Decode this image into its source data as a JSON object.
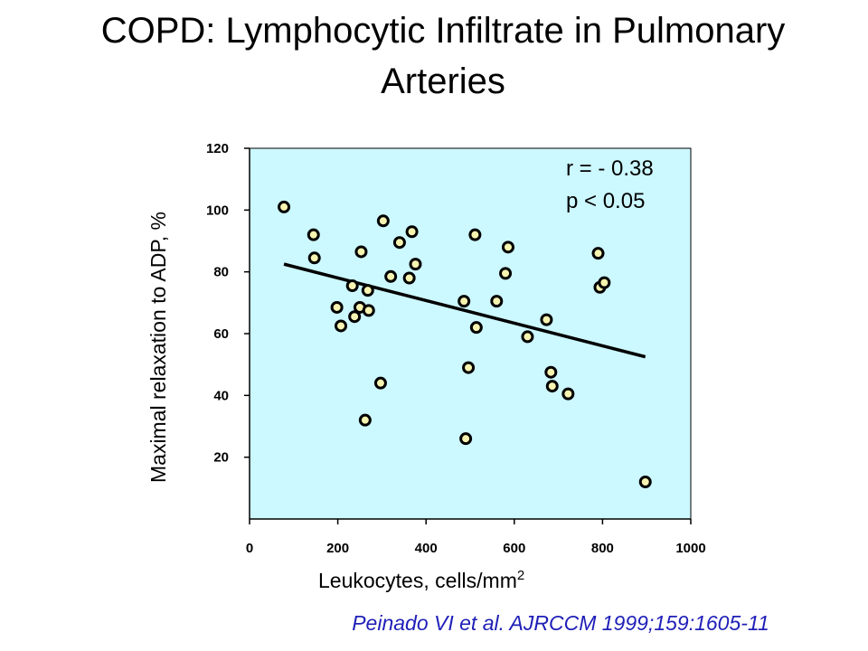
{
  "title_line1": "COPD: Lymphocytic Infiltrate in Pulmonary",
  "title_line2": "Arteries",
  "citation": "Peinado VI et al. AJRCCM 1999;159:1605-11",
  "chart_data": {
    "type": "scatter",
    "xlabel": "Leukocytes, cells/mm",
    "xlabel_superscript": "2",
    "ylabel": "Maximal relaxation to ADP, %",
    "xlim": [
      0,
      1000
    ],
    "ylim": [
      0,
      120
    ],
    "x_ticks": [
      "0",
      "200",
      "400",
      "600",
      "800",
      "1000"
    ],
    "y_ticks": [
      "20",
      "40",
      "60",
      "80",
      "100",
      "120"
    ],
    "y_tick_values": [
      20,
      40,
      60,
      80,
      100,
      120
    ],
    "annotations": [
      "r = - 0.38",
      "p < 0.05"
    ],
    "grid": false,
    "colors": {
      "plot_background": "#ccf8ff",
      "point_fill": "#f7f4b0",
      "line": "#000000",
      "citation": "#1f1fb8"
    },
    "points": [
      {
        "x": 78,
        "y": 101
      },
      {
        "x": 145,
        "y": 92
      },
      {
        "x": 147,
        "y": 84.5
      },
      {
        "x": 198,
        "y": 68.5
      },
      {
        "x": 207,
        "y": 62.5
      },
      {
        "x": 233,
        "y": 75.5
      },
      {
        "x": 238,
        "y": 65.5
      },
      {
        "x": 250,
        "y": 68.5
      },
      {
        "x": 253,
        "y": 86.5
      },
      {
        "x": 262,
        "y": 32
      },
      {
        "x": 268,
        "y": 74
      },
      {
        "x": 270,
        "y": 67.5
      },
      {
        "x": 297,
        "y": 44
      },
      {
        "x": 303,
        "y": 96.5
      },
      {
        "x": 320,
        "y": 78.5
      },
      {
        "x": 340,
        "y": 89.5
      },
      {
        "x": 362,
        "y": 78
      },
      {
        "x": 368,
        "y": 93
      },
      {
        "x": 376,
        "y": 82.5
      },
      {
        "x": 486,
        "y": 70.5
      },
      {
        "x": 490,
        "y": 26
      },
      {
        "x": 496,
        "y": 49
      },
      {
        "x": 511,
        "y": 92
      },
      {
        "x": 514,
        "y": 62
      },
      {
        "x": 560,
        "y": 70.5
      },
      {
        "x": 580,
        "y": 79.5
      },
      {
        "x": 586,
        "y": 88
      },
      {
        "x": 630,
        "y": 59
      },
      {
        "x": 673,
        "y": 64.5
      },
      {
        "x": 683,
        "y": 47.5
      },
      {
        "x": 686,
        "y": 43
      },
      {
        "x": 722,
        "y": 40.5
      },
      {
        "x": 790,
        "y": 86
      },
      {
        "x": 794,
        "y": 75
      },
      {
        "x": 804,
        "y": 76.5
      },
      {
        "x": 897,
        "y": 12
      }
    ],
    "regression_line": {
      "x": [
        78,
        897
      ],
      "y": [
        82.5,
        52.5
      ]
    }
  }
}
